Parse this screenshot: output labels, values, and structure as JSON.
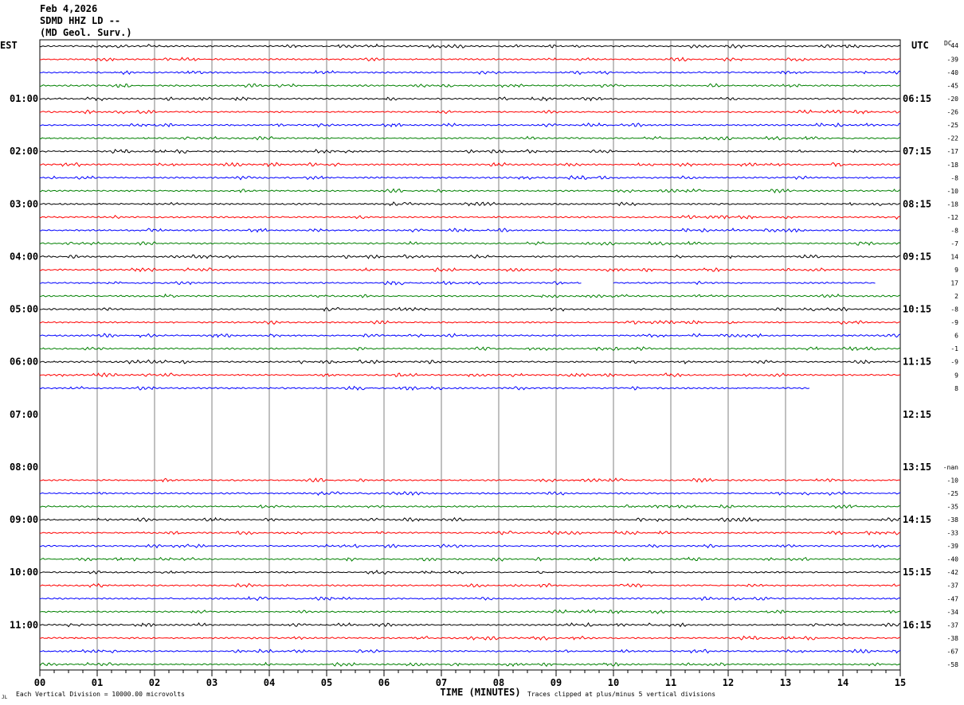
{
  "header": {
    "line1": "Feb 4,2026",
    "line2": "SDMD HHZ LD --",
    "line3": "(MD Geol. Surv.)"
  },
  "chart_data": {
    "type": "line",
    "title": "SDMD HHZ LD --",
    "left_axis_label": "EST",
    "right_axis_label": "UTC",
    "dc_label": "DC",
    "xlabel": "TIME (MINUTES)",
    "xlim": [
      0,
      15
    ],
    "x_ticks": [
      "00",
      "01",
      "02",
      "03",
      "04",
      "05",
      "06",
      "07",
      "08",
      "09",
      "10",
      "11",
      "12",
      "13",
      "14",
      "15"
    ],
    "grid": true,
    "trace_colors": [
      "#000000",
      "#ff0000",
      "#0000ff",
      "#008000"
    ],
    "footer_left": "Each Vertical Division = 10000.00 microvolts",
    "footer_right": "Traces clipped at plus/minus 5 vertical divisions",
    "footer_mark": "JL",
    "left_hour_labels": [
      "",
      "01:00",
      "02:00",
      "03:00",
      "04:00",
      "05:00",
      "06:00",
      "07:00",
      "08:00",
      "09:00",
      "10:00",
      "11:00"
    ],
    "right_hour_labels": [
      "",
      "06:15",
      "07:15",
      "08:15",
      "09:15",
      "10:15",
      "11:15",
      "12:15",
      "13:15",
      "14:15",
      "15:15",
      "16:15"
    ],
    "rows": [
      {
        "dc": "-44",
        "start": 0,
        "end": 15
      },
      {
        "dc": "-39",
        "start": 0,
        "end": 15
      },
      {
        "dc": "-40",
        "start": 0,
        "end": 15
      },
      {
        "dc": "-45",
        "start": 0,
        "end": 15
      },
      {
        "dc": "-20",
        "start": 0,
        "end": 15
      },
      {
        "dc": "-26",
        "start": 0,
        "end": 15
      },
      {
        "dc": "-25",
        "start": 0,
        "end": 15
      },
      {
        "dc": "-22",
        "start": 0,
        "end": 15
      },
      {
        "dc": "-17",
        "start": 0,
        "end": 15
      },
      {
        "dc": "-18",
        "start": 0,
        "end": 15
      },
      {
        "dc": "-8",
        "start": 0,
        "end": 15
      },
      {
        "dc": "-10",
        "start": 0,
        "end": 15
      },
      {
        "dc": "-18",
        "start": 0,
        "end": 15
      },
      {
        "dc": "-12",
        "start": 0,
        "end": 15
      },
      {
        "dc": "-8",
        "start": 0,
        "end": 15
      },
      {
        "dc": "-7",
        "start": 0,
        "end": 15
      },
      {
        "dc": "14",
        "start": 0,
        "end": 15
      },
      {
        "dc": "9",
        "start": 0,
        "end": 15
      },
      {
        "dc": "17",
        "start": 0,
        "end": 14.57,
        "gap": [
          9.45,
          10.0
        ]
      },
      {
        "dc": "2",
        "start": 0,
        "end": 15
      },
      {
        "dc": "-8",
        "start": 0,
        "end": 15
      },
      {
        "dc": "-9",
        "start": 0,
        "end": 15
      },
      {
        "dc": "6",
        "start": 0,
        "end": 15
      },
      {
        "dc": "-1",
        "start": 0,
        "end": 15
      },
      {
        "dc": "-9",
        "start": 0,
        "end": 15
      },
      {
        "dc": "9",
        "start": 0,
        "end": 15
      },
      {
        "dc": "8",
        "start": 0,
        "end": 13.43
      },
      {
        "dc": "",
        "start": null,
        "end": null
      },
      {
        "dc": "",
        "start": null,
        "end": null
      },
      {
        "dc": "",
        "start": null,
        "end": null
      },
      {
        "dc": "",
        "start": null,
        "end": null
      },
      {
        "dc": "",
        "start": null,
        "end": null
      },
      {
        "dc": "-nan",
        "start": null,
        "end": null
      },
      {
        "dc": "-10",
        "start": 0,
        "end": 15
      },
      {
        "dc": "-25",
        "start": 0,
        "end": 15
      },
      {
        "dc": "-35",
        "start": 0,
        "end": 15
      },
      {
        "dc": "-38",
        "start": 0,
        "end": 15
      },
      {
        "dc": "-33",
        "start": 0,
        "end": 15
      },
      {
        "dc": "-39",
        "start": 0,
        "end": 15
      },
      {
        "dc": "-40",
        "start": 0,
        "end": 15
      },
      {
        "dc": "-42",
        "start": 0,
        "end": 15
      },
      {
        "dc": "-37",
        "start": 0,
        "end": 15
      },
      {
        "dc": "-47",
        "start": 0,
        "end": 15
      },
      {
        "dc": "-34",
        "start": 0,
        "end": 15
      },
      {
        "dc": "-37",
        "start": 0,
        "end": 15
      },
      {
        "dc": "-38",
        "start": 0,
        "end": 15
      },
      {
        "dc": "-67",
        "start": 0,
        "end": 15
      },
      {
        "dc": "-58",
        "start": 0,
        "end": 15
      }
    ]
  }
}
